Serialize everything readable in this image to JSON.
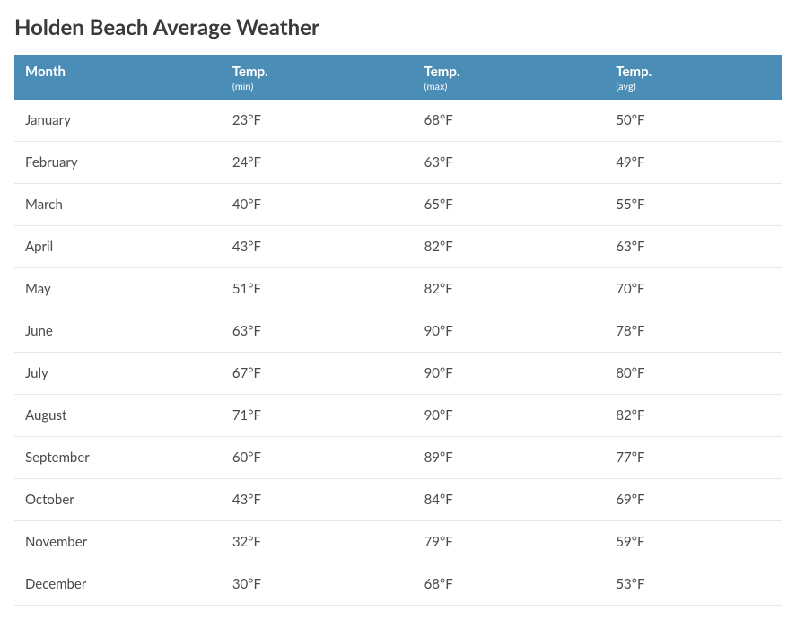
{
  "title": "Holden Beach Average Weather",
  "table": {
    "type": "table",
    "header_bg_color": "#4a8db7",
    "header_text_color": "#ffffff",
    "row_border_color": "#e8e8e8",
    "text_color": "#4a4a4a",
    "title_color": "#3a3a3a",
    "title_fontsize": 24,
    "header_fontsize": 15,
    "header_sub_fontsize": 11,
    "cell_fontsize": 15,
    "columns": [
      {
        "label": "Month",
        "sub": ""
      },
      {
        "label": "Temp.",
        "sub": "(min)"
      },
      {
        "label": "Temp.",
        "sub": "(max)"
      },
      {
        "label": "Temp.",
        "sub": "(avg)"
      }
    ],
    "rows": [
      {
        "month": "January",
        "min": "23°F",
        "max": "68°F",
        "avg": "50°F"
      },
      {
        "month": "February",
        "min": "24°F",
        "max": "63°F",
        "avg": "49°F"
      },
      {
        "month": "March",
        "min": "40°F",
        "max": "65°F",
        "avg": "55°F"
      },
      {
        "month": "April",
        "min": "43°F",
        "max": "82°F",
        "avg": "63°F"
      },
      {
        "month": "May",
        "min": "51°F",
        "max": "82°F",
        "avg": "70°F"
      },
      {
        "month": "June",
        "min": "63°F",
        "max": "90°F",
        "avg": "78°F"
      },
      {
        "month": "July",
        "min": "67°F",
        "max": "90°F",
        "avg": "80°F"
      },
      {
        "month": "August",
        "min": "71°F",
        "max": "90°F",
        "avg": "82°F"
      },
      {
        "month": "September",
        "min": "60°F",
        "max": "89°F",
        "avg": "77°F"
      },
      {
        "month": "October",
        "min": "43°F",
        "max": "84°F",
        "avg": "69°F"
      },
      {
        "month": "November",
        "min": "32°F",
        "max": "79°F",
        "avg": "59°F"
      },
      {
        "month": "December",
        "min": "30°F",
        "max": "68°F",
        "avg": "53°F"
      }
    ]
  }
}
